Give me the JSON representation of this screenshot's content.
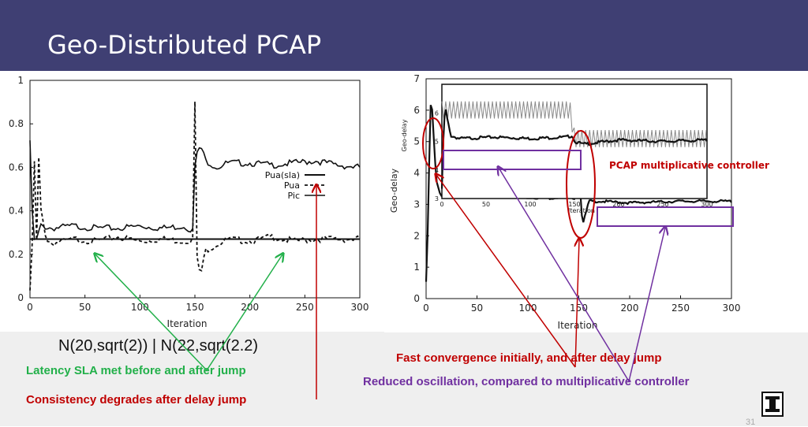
{
  "slide": {
    "title": "Geo-Distributed PCAP",
    "page_number": "31"
  },
  "captions": {
    "formula": "N(20,sqrt(2))   |   N(22,sqrt(2.2)",
    "latency": "Latency SLA met before and after jump",
    "consistency": "Consistency degrades after delay jump",
    "fast": "Fast convergence initially, and after delay jump",
    "reduced": "Reduced oscillation, compared to multiplicative controller"
  },
  "colors": {
    "header": "#3f3f73",
    "green_annotation": "#22b04a",
    "red_annotation": "#c00000",
    "purple_annotation": "#7030a0"
  },
  "chart_data": [
    {
      "type": "line",
      "xlabel": "Iteration",
      "ylabel": "",
      "xlim": [
        0,
        300
      ],
      "ylim": [
        0,
        1
      ],
      "x_ticks": [
        "0",
        "50",
        "100",
        "150",
        "200",
        "250",
        "300"
      ],
      "y_ticks": [
        "0",
        "0.2",
        "0.4",
        "0.6",
        "0.8",
        "1"
      ],
      "legend": [
        "Pua(sla)",
        "Pua",
        "Pic"
      ],
      "legend_position": "right-middle",
      "series": [
        {
          "name": "Pua(sla)",
          "style": "solid-thin",
          "x": [
            0,
            300
          ],
          "y": [
            0.27,
            0.27
          ]
        },
        {
          "name": "Pua",
          "style": "dashed",
          "x": [
            0,
            1,
            2,
            3,
            4,
            5,
            6,
            8,
            10,
            15,
            20,
            40,
            60,
            80,
            100,
            120,
            140,
            148,
            149,
            150,
            151,
            152,
            155,
            160,
            180,
            200,
            220,
            240,
            260,
            280,
            300
          ],
          "y": [
            0.02,
            0.1,
            0.25,
            0.72,
            0.62,
            0.3,
            0.26,
            0.64,
            0.4,
            0.27,
            0.25,
            0.27,
            0.26,
            0.28,
            0.26,
            0.27,
            0.26,
            0.27,
            0.88,
            0.9,
            0.3,
            0.18,
            0.1,
            0.22,
            0.27,
            0.26,
            0.28,
            0.26,
            0.27,
            0.27,
            0.27
          ]
        },
        {
          "name": "Pic",
          "style": "solid",
          "x": [
            0,
            1,
            2,
            3,
            5,
            8,
            10,
            20,
            40,
            60,
            80,
            100,
            120,
            140,
            148,
            149,
            150,
            152,
            155,
            160,
            170,
            180,
            200,
            220,
            240,
            260,
            280,
            300
          ],
          "y": [
            0.71,
            0.65,
            0.4,
            0.27,
            0.25,
            0.3,
            0.33,
            0.32,
            0.33,
            0.32,
            0.32,
            0.33,
            0.32,
            0.33,
            0.31,
            0.4,
            0.6,
            0.66,
            0.7,
            0.63,
            0.6,
            0.62,
            0.62,
            0.61,
            0.62,
            0.63,
            0.61,
            0.6
          ]
        }
      ]
    },
    {
      "type": "line",
      "xlabel": "Iteration",
      "ylabel": "Geo-delay",
      "xlim": [
        0,
        300
      ],
      "ylim": [
        0,
        7
      ],
      "x_ticks": [
        "0",
        "50",
        "100",
        "150",
        "200",
        "250",
        "300"
      ],
      "y_ticks": [
        "0",
        "1",
        "2",
        "3",
        "4",
        "5",
        "6",
        "7"
      ],
      "annotation": "PCAP multiplicative controller",
      "series": [
        {
          "name": "",
          "style": "solid",
          "x": [
            0,
            2,
            4,
            5,
            6,
            8,
            10,
            14,
            20,
            40,
            80,
            120,
            140,
            146,
            148,
            150,
            152,
            154,
            156,
            160,
            170,
            200,
            250,
            300
          ],
          "y": [
            0.5,
            2.5,
            6.0,
            6.3,
            6.0,
            4.8,
            3.8,
            3.3,
            3.2,
            3.25,
            3.25,
            3.2,
            3.25,
            3.2,
            3.5,
            4.8,
            3.0,
            2.35,
            2.6,
            3.1,
            3.1,
            3.05,
            3.1,
            3.1
          ]
        }
      ],
      "inset": {
        "type": "line",
        "xlabel": "Iteration",
        "ylabel": "Geo-delay",
        "xlim": [
          0,
          300
        ],
        "ylim": [
          3,
          7
        ],
        "x_ticks": [
          "0",
          "50",
          "100",
          "150",
          "200",
          "250",
          "300"
        ],
        "y_ticks": [
          "3",
          "4",
          "5",
          "6"
        ],
        "series": [
          {
            "name": "",
            "style": "solid",
            "x": [
              0,
              2,
              4,
              6,
              10,
              20,
              60,
              100,
              140,
              148,
              150,
              160,
              200,
              250,
              300
            ],
            "y": [
              3.3,
              5.5,
              6.2,
              5.8,
              5.2,
              5.1,
              5.15,
              5.1,
              5.15,
              5.2,
              5.0,
              4.9,
              5.05,
              5.0,
              5.05
            ]
          },
          {
            "name": "",
            "style": "oscillating-gray",
            "x": [
              0,
              145,
              150,
              300
            ],
            "lo": [
              5.8,
              5.8,
              4.8,
              4.8
            ],
            "hi": [
              6.4,
              6.4,
              5.4,
              5.4
            ]
          }
        ]
      }
    }
  ]
}
